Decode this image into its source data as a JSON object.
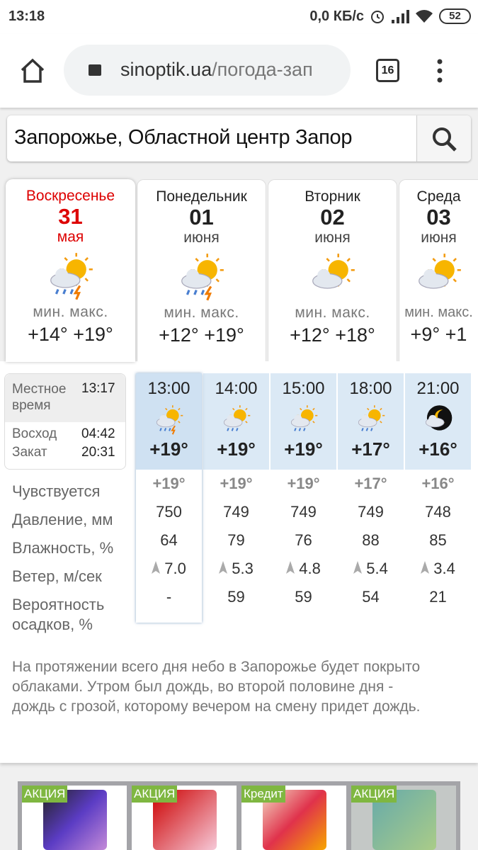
{
  "status_bar": {
    "time": "13:18",
    "net_speed": "0,0 КБ/с",
    "battery": "52"
  },
  "browser": {
    "url_domain": "sinoptik.ua",
    "url_path": "/погода-зап",
    "tab_count": "16"
  },
  "search": {
    "value": "Запорожье, Областной центр Запор"
  },
  "days": [
    {
      "name": "Воскресенье",
      "date": "31",
      "month": "мая",
      "min_label": "мин.",
      "max_label": "макс.",
      "min": "+14°",
      "max": "+19°",
      "icon": "sun-cloud-thunder-rain",
      "active": true
    },
    {
      "name": "Понедельник",
      "date": "01",
      "month": "июня",
      "min_label": "мин.",
      "max_label": "макс.",
      "min": "+12°",
      "max": "+19°",
      "icon": "sun-cloud-thunder-rain"
    },
    {
      "name": "Вторник",
      "date": "02",
      "month": "июня",
      "min_label": "мин.",
      "max_label": "макс.",
      "min": "+12°",
      "max": "+18°",
      "icon": "sun-cloud"
    },
    {
      "name": "Среда",
      "date": "03",
      "month": "июня",
      "min_label": "мин.",
      "max_label": "макс.",
      "min": "+9°",
      "max": "+1",
      "icon": "sun-cloud"
    }
  ],
  "info": {
    "local_label": "Местное время",
    "local_time": "13:17",
    "sunrise_label": "Восход",
    "sunrise": "04:42",
    "sunset_label": "Закат",
    "sunset": "20:31"
  },
  "row_labels": {
    "feels": "Чувствуется",
    "pressure": "Давление, мм",
    "humidity": "Влажность, %",
    "wind": "Ветер, м/сек",
    "precip": "Вероятность осадков, %"
  },
  "hours": [
    {
      "time": "13:00",
      "temp": "+19°",
      "feels": "+19°",
      "pressure": "750",
      "humidity": "64",
      "wind": "7.0",
      "precip": "-",
      "icon": "thunder-rain"
    },
    {
      "time": "14:00",
      "temp": "+19°",
      "feels": "+19°",
      "pressure": "749",
      "humidity": "79",
      "wind": "5.3",
      "precip": "59",
      "icon": "sun-cloud-rain"
    },
    {
      "time": "15:00",
      "temp": "+19°",
      "feels": "+19°",
      "pressure": "749",
      "humidity": "76",
      "wind": "4.8",
      "precip": "59",
      "icon": "sun-cloud-rain"
    },
    {
      "time": "18:00",
      "temp": "+17°",
      "feels": "+17°",
      "pressure": "749",
      "humidity": "88",
      "wind": "5.4",
      "precip": "54",
      "icon": "sun-cloud-rain"
    },
    {
      "time": "21:00",
      "temp": "+16°",
      "feels": "+16°",
      "pressure": "748",
      "humidity": "85",
      "wind": "3.4",
      "precip": "21",
      "icon": "night-cloud"
    }
  ],
  "description": "На протяжении всего дня небо в Запорожье будет покрыто облаками. Утром был дождь, во второй половине дня - дождь с грозой, которому вечером на смену придет дождь.",
  "ads": [
    {
      "badge": "АКЦИЯ"
    },
    {
      "badge": "АКЦИЯ"
    },
    {
      "badge": "Кредит"
    },
    {
      "badge": "АКЦИЯ"
    }
  ]
}
